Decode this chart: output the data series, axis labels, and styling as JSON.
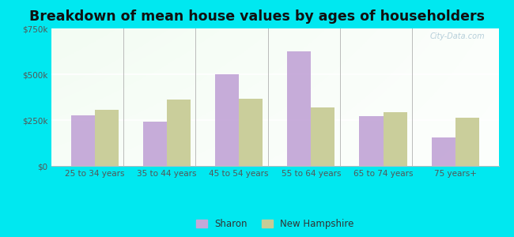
{
  "title": "Breakdown of mean house values by ages of householders",
  "categories": [
    "25 to 34 years",
    "35 to 44 years",
    "45 to 54 years",
    "55 to 64 years",
    "65 to 74 years",
    "75 years+"
  ],
  "sharon_values": [
    275000,
    240000,
    500000,
    625000,
    270000,
    155000
  ],
  "nh_values": [
    305000,
    360000,
    365000,
    320000,
    295000,
    265000
  ],
  "sharon_color": "#c4a8d8",
  "nh_color": "#c8cc96",
  "ylim": [
    0,
    750000
  ],
  "yticks": [
    0,
    250000,
    500000,
    750000
  ],
  "ytick_labels": [
    "$0",
    "$250k",
    "$500k",
    "$750k"
  ],
  "outer_bg": "#00e8f0",
  "title_fontsize": 12.5,
  "legend_sharon": "Sharon",
  "legend_nh": "New Hampshire",
  "watermark": "City-Data.com"
}
